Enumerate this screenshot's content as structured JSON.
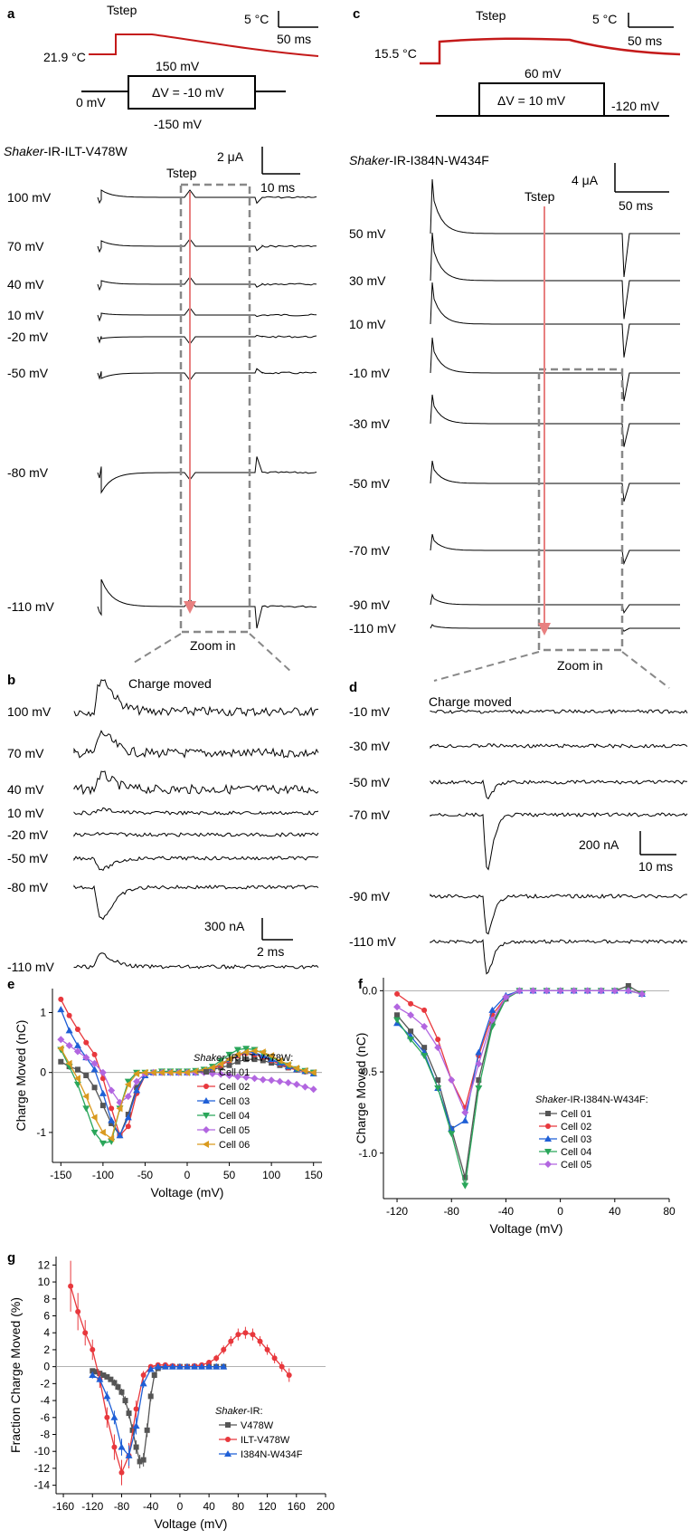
{
  "panels": {
    "a": {
      "letter": "a",
      "tstep_label": "Tstep",
      "temp_start": "21.9 °C",
      "temp_scale": "5 °C",
      "time_scale": "50 ms",
      "protocol": {
        "top": "150 mV",
        "bottom": "-150 mV",
        "left": "0 mV",
        "delta": "ΔV = -10 mV"
      },
      "construct_italic": "Shaker",
      "construct_rest": "-IR-ILT-V478W",
      "current_scale": "2 μA",
      "current_time_scale": "10 ms",
      "traces_tstep_label": "Tstep",
      "voltages": [
        "100 mV",
        "70 mV",
        "40 mV",
        "10 mV",
        "-20 mV",
        "-50 mV",
        "-80 mV",
        "-110 mV"
      ],
      "zoom_label": "Zoom in"
    },
    "b": {
      "letter": "b",
      "title": "Charge moved",
      "voltages": [
        "100 mV",
        "70 mV",
        "40 mV",
        "10 mV",
        "-20 mV",
        "-50 mV",
        "-80 mV",
        "-110 mV"
      ],
      "current_scale": "300 nA",
      "time_scale": "2 ms"
    },
    "c": {
      "letter": "c",
      "tstep_label": "Tstep",
      "temp_start": "15.5 °C",
      "temp_scale": "5 °C",
      "time_scale": "50 ms",
      "protocol": {
        "top": "60 mV",
        "right": "-120 mV",
        "delta": "ΔV = 10 mV"
      },
      "construct_italic": "Shaker",
      "construct_rest": "-IR-I384N-W434F",
      "current_scale": "4 μA",
      "current_time_scale": "50 ms",
      "traces_tstep_label": "Tstep",
      "voltages": [
        "50 mV",
        "30 mV",
        "10 mV",
        "-10 mV",
        "-30 mV",
        "-50 mV",
        "-70 mV",
        "-90 mV",
        "-110 mV"
      ],
      "zoom_label": "Zoom in"
    },
    "d": {
      "letter": "d",
      "title": "Charge moved",
      "voltages": [
        "-10 mV",
        "-30 mV",
        "-50 mV",
        "-70 mV",
        "-90 mV",
        "-110 mV"
      ],
      "current_scale": "200 nA",
      "time_scale": "10 ms"
    },
    "e": {
      "letter": "e",
      "legend_title_italic": "Shaker",
      "legend_title_rest": "-IR-ILT-V478W:"
    },
    "f": {
      "letter": "f",
      "legend_title_italic": "Shaker",
      "legend_title_rest": "-IR-I384N-W434F:"
    },
    "g": {
      "letter": "g",
      "legend_title_italic": "Shaker",
      "legend_title_rest": "-IR:"
    }
  },
  "chart_data": [
    {
      "panel": "e",
      "type": "line",
      "xlabel": "Voltage (mV)",
      "ylabel": "Charge Moved (nC)",
      "xlim": [
        -160,
        160
      ],
      "ylim": [
        -1.5,
        1.4
      ],
      "xticks": [
        -150,
        -100,
        -50,
        0,
        50,
        100,
        150
      ],
      "yticks": [
        -1,
        0,
        1
      ],
      "x": [
        -150,
        -140,
        -130,
        -120,
        -110,
        -100,
        -90,
        -80,
        -70,
        -60,
        -50,
        -40,
        -30,
        -20,
        -10,
        0,
        10,
        20,
        30,
        40,
        50,
        60,
        70,
        80,
        90,
        100,
        110,
        120,
        130,
        140,
        150
      ],
      "series": [
        {
          "name": "Cell 01",
          "color": "#555555",
          "marker": "square",
          "values": [
            0.18,
            0.1,
            0.05,
            -0.05,
            -0.25,
            -0.55,
            -0.85,
            -1.05,
            -0.7,
            -0.25,
            -0.05,
            0.0,
            0.0,
            0.0,
            0.0,
            0.0,
            0.0,
            0.02,
            0.05,
            0.08,
            0.12,
            0.18,
            0.22,
            0.22,
            0.2,
            0.16,
            0.12,
            0.08,
            0.05,
            0.02,
            0.0
          ]
        },
        {
          "name": "Cell 02",
          "color": "#e8383d",
          "marker": "circle",
          "values": [
            1.22,
            0.95,
            0.72,
            0.5,
            0.3,
            -0.1,
            -0.6,
            -1.05,
            -0.9,
            -0.35,
            -0.05,
            0.0,
            0.0,
            0.0,
            0.0,
            0.0,
            0.0,
            0.02,
            0.06,
            0.12,
            0.2,
            0.28,
            0.32,
            0.3,
            0.26,
            0.2,
            0.14,
            0.08,
            0.04,
            0.01,
            -0.02
          ]
        },
        {
          "name": "Cell 03",
          "color": "#1f5fd6",
          "marker": "triangle",
          "values": [
            1.05,
            0.7,
            0.45,
            0.25,
            0.05,
            -0.35,
            -0.8,
            -1.05,
            -0.75,
            -0.3,
            -0.05,
            0.0,
            0.0,
            0.0,
            0.0,
            0.0,
            0.0,
            0.03,
            0.08,
            0.15,
            0.22,
            0.3,
            0.35,
            0.33,
            0.28,
            0.22,
            0.16,
            0.1,
            0.05,
            0.02,
            -0.02
          ]
        },
        {
          "name": "Cell 04",
          "color": "#2aa65a",
          "marker": "triangle-down",
          "values": [
            0.38,
            0.1,
            -0.2,
            -0.6,
            -1.0,
            -1.18,
            -1.15,
            -0.6,
            -0.15,
            0.0,
            0.0,
            0.0,
            0.02,
            0.02,
            0.02,
            0.02,
            0.03,
            0.05,
            0.1,
            0.2,
            0.3,
            0.38,
            0.4,
            0.38,
            0.32,
            0.26,
            0.18,
            0.12,
            0.06,
            0.03,
            0.0
          ]
        },
        {
          "name": "Cell 05",
          "color": "#b266e0",
          "marker": "diamond",
          "values": [
            0.55,
            0.45,
            0.35,
            0.25,
            0.15,
            0.0,
            -0.3,
            -0.5,
            -0.4,
            -0.15,
            -0.02,
            0.0,
            0.0,
            0.0,
            0.0,
            0.0,
            0.0,
            0.0,
            -0.02,
            -0.03,
            -0.05,
            -0.07,
            -0.08,
            -0.1,
            -0.12,
            -0.13,
            -0.15,
            -0.17,
            -0.2,
            -0.24,
            -0.28
          ]
        },
        {
          "name": "Cell 06",
          "color": "#d99a1f",
          "marker": "triangle-left",
          "values": [
            0.4,
            0.15,
            -0.1,
            -0.4,
            -0.75,
            -1.0,
            -1.1,
            -0.6,
            -0.2,
            -0.02,
            0.0,
            0.0,
            0.0,
            0.0,
            0.0,
            0.0,
            0.02,
            0.04,
            0.08,
            0.14,
            0.22,
            0.3,
            0.34,
            0.36,
            0.34,
            0.28,
            0.2,
            0.13,
            0.07,
            0.03,
            0.0
          ]
        }
      ]
    },
    {
      "panel": "f",
      "type": "line",
      "xlabel": "Voltage (mV)",
      "ylabel": "Charge Moved (nC)",
      "xlim": [
        -130,
        80
      ],
      "ylim": [
        -1.28,
        0.08
      ],
      "xticks": [
        -120,
        -80,
        -40,
        0,
        40,
        80
      ],
      "yticks": [
        0.0,
        -0.5,
        -1.0
      ],
      "x": [
        -120,
        -110,
        -100,
        -90,
        -80,
        -70,
        -60,
        -50,
        -40,
        -30,
        -20,
        -10,
        0,
        10,
        20,
        30,
        40,
        50,
        60
      ],
      "series": [
        {
          "name": "Cell 01",
          "color": "#555555",
          "marker": "square",
          "values": [
            -0.15,
            -0.25,
            -0.35,
            -0.55,
            -0.85,
            -1.15,
            -0.55,
            -0.2,
            -0.05,
            0.0,
            0.0,
            0.0,
            0.0,
            0.0,
            0.0,
            0.0,
            0.0,
            0.03,
            -0.02
          ]
        },
        {
          "name": "Cell 02",
          "color": "#e8383d",
          "marker": "circle",
          "values": [
            -0.02,
            -0.08,
            -0.12,
            -0.3,
            -0.55,
            -0.72,
            -0.4,
            -0.15,
            -0.04,
            0.0,
            0.0,
            0.0,
            0.0,
            0.0,
            0.0,
            0.0,
            0.0,
            0.0,
            -0.02
          ]
        },
        {
          "name": "Cell 03",
          "color": "#1f5fd6",
          "marker": "triangle",
          "values": [
            -0.2,
            -0.28,
            -0.38,
            -0.6,
            -0.85,
            -0.8,
            -0.38,
            -0.12,
            -0.03,
            0.0,
            0.0,
            0.0,
            0.0,
            0.0,
            0.0,
            0.0,
            0.0,
            0.0,
            -0.02
          ]
        },
        {
          "name": "Cell 04",
          "color": "#2aa65a",
          "marker": "triangle-down",
          "values": [
            -0.18,
            -0.3,
            -0.4,
            -0.6,
            -0.88,
            -1.2,
            -0.6,
            -0.22,
            -0.05,
            0.0,
            0.0,
            0.0,
            0.0,
            0.0,
            0.0,
            0.0,
            0.0,
            0.0,
            -0.02
          ]
        },
        {
          "name": "Cell 05",
          "color": "#b266e0",
          "marker": "diamond",
          "values": [
            -0.1,
            -0.15,
            -0.22,
            -0.35,
            -0.55,
            -0.75,
            -0.45,
            -0.18,
            -0.04,
            0.0,
            0.0,
            0.0,
            0.0,
            0.0,
            0.0,
            0.0,
            0.0,
            0.0,
            -0.02
          ]
        }
      ]
    },
    {
      "panel": "g",
      "type": "line",
      "xlabel": "Voltage (mV)",
      "ylabel": "Fraction Charge Moved (%)",
      "xlim": [
        -170,
        200
      ],
      "ylim": [
        -15,
        13
      ],
      "xticks": [
        -160,
        -120,
        -80,
        -40,
        0,
        40,
        80,
        120,
        160,
        200
      ],
      "yticks": [
        12,
        10,
        8,
        6,
        4,
        2,
        0,
        -2,
        -4,
        -6,
        -8,
        -10,
        -12,
        -14
      ],
      "series": [
        {
          "name": "V478W",
          "color": "#555555",
          "marker": "square",
          "x": [
            -120,
            -115,
            -110,
            -105,
            -100,
            -95,
            -90,
            -85,
            -80,
            -75,
            -70,
            -65,
            -60,
            -55,
            -50,
            -45,
            -40,
            -35,
            -30,
            -20,
            -10,
            0,
            10,
            20,
            30,
            40,
            50,
            60
          ],
          "values": [
            -0.5,
            -0.6,
            -0.8,
            -1.0,
            -1.2,
            -1.5,
            -1.9,
            -2.4,
            -3.0,
            -4.0,
            -5.5,
            -7.5,
            -9.5,
            -11.2,
            -11.0,
            -7.5,
            -3.5,
            -1.0,
            -0.2,
            0.0,
            0.0,
            0.0,
            0.0,
            0.0,
            0.0,
            0.0,
            0.0,
            0.0
          ],
          "errors": [
            0.3,
            0.3,
            0.3,
            0.3,
            0.3,
            0.3,
            0.4,
            0.4,
            0.4,
            0.5,
            0.6,
            0.7,
            0.8,
            0.8,
            0.8,
            0.8,
            0.6,
            0.4,
            0.2,
            0.1,
            0.1,
            0.1,
            0.1,
            0.1,
            0.1,
            0.1,
            0.1,
            0.1
          ]
        },
        {
          "name": "ILT-V478W",
          "color": "#e8383d",
          "marker": "circle",
          "x": [
            -150,
            -140,
            -130,
            -120,
            -110,
            -100,
            -90,
            -80,
            -70,
            -60,
            -50,
            -40,
            -30,
            -20,
            -10,
            0,
            10,
            20,
            30,
            40,
            50,
            60,
            70,
            80,
            90,
            100,
            110,
            120,
            130,
            140,
            150
          ],
          "values": [
            9.5,
            6.5,
            4.0,
            2.0,
            -1.5,
            -6.0,
            -9.5,
            -12.5,
            -10.5,
            -5.0,
            -1.0,
            0.0,
            0.2,
            0.2,
            0.1,
            0.0,
            0.0,
            0.1,
            0.2,
            0.5,
            1.0,
            2.0,
            3.0,
            3.8,
            4.0,
            3.8,
            3.0,
            2.0,
            1.0,
            0.0,
            -1.0
          ],
          "errors": [
            3.0,
            2.2,
            1.5,
            1.2,
            1.0,
            1.2,
            1.5,
            1.5,
            1.5,
            1.0,
            0.5,
            0.2,
            0.2,
            0.2,
            0.2,
            0.2,
            0.2,
            0.2,
            0.2,
            0.3,
            0.4,
            0.5,
            0.6,
            0.7,
            0.7,
            0.7,
            0.6,
            0.6,
            0.6,
            0.6,
            0.8
          ]
        },
        {
          "name": "I384N-W434F",
          "color": "#1f5fd6",
          "marker": "triangle",
          "x": [
            -120,
            -110,
            -100,
            -90,
            -80,
            -70,
            -60,
            -50,
            -40,
            -30,
            -20,
            -10,
            0,
            10,
            20,
            30,
            40,
            50,
            60
          ],
          "values": [
            -1.0,
            -1.5,
            -3.5,
            -6.0,
            -9.5,
            -10.5,
            -7.0,
            -2.0,
            -0.3,
            0.0,
            0.0,
            0.0,
            0.0,
            0.0,
            0.0,
            0.0,
            0.0,
            0.0,
            0.0
          ],
          "errors": [
            0.4,
            0.4,
            0.6,
            0.8,
            1.0,
            1.2,
            1.0,
            0.5,
            0.2,
            0.1,
            0.1,
            0.1,
            0.1,
            0.1,
            0.1,
            0.1,
            0.1,
            0.1,
            0.1
          ]
        }
      ]
    }
  ]
}
